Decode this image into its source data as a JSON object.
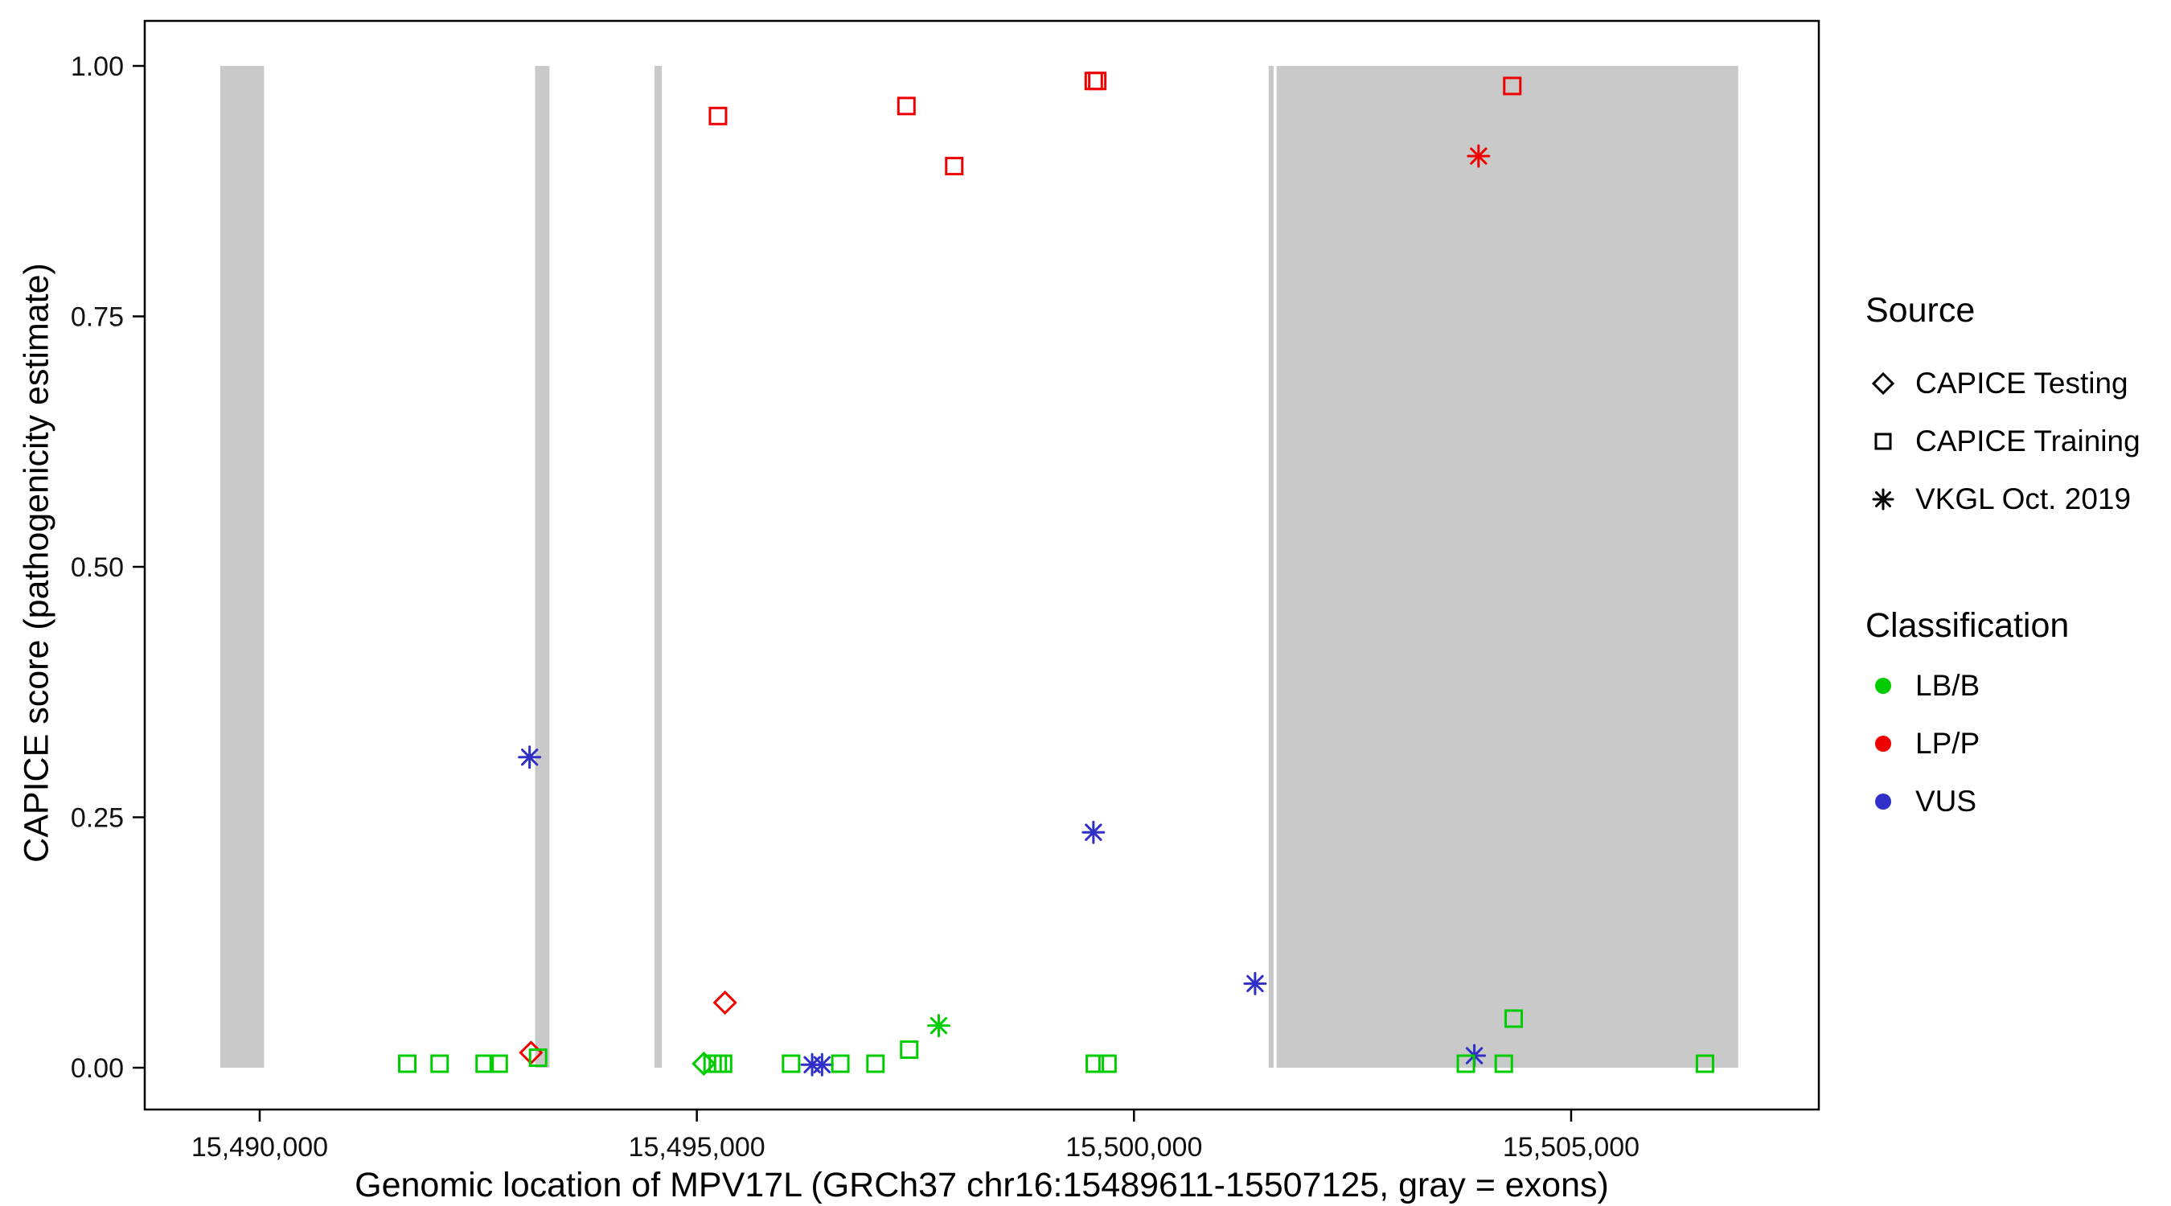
{
  "chart_data": {
    "type": "scatter",
    "title": "",
    "xlabel": "Genomic location of MPV17L (GRCh37 chr16:15489611-15507125, gray = exons)",
    "ylabel": "CAPICE score (pathogenicity estimate)",
    "x_domain": [
      15488685,
      15507833
    ],
    "y_domain": [
      -0.042,
      1.045
    ],
    "grid": "off",
    "legend_position": "right",
    "x_ticks": [
      {
        "value": 15490000,
        "label": "15,490,000"
      },
      {
        "value": 15495000,
        "label": "15,495,000"
      },
      {
        "value": 15500000,
        "label": "15,500,000"
      },
      {
        "value": 15505000,
        "label": "15,505,000"
      }
    ],
    "y_ticks": [
      {
        "value": 0.0,
        "label": "0.00"
      },
      {
        "value": 0.25,
        "label": "0.25"
      },
      {
        "value": 0.5,
        "label": "0.50"
      },
      {
        "value": 0.75,
        "label": "0.75"
      },
      {
        "value": 1.0,
        "label": "1.00"
      }
    ],
    "exons": [
      {
        "start": 15489549,
        "end": 15490050
      },
      {
        "start": 15493150,
        "end": 15493315
      },
      {
        "start": 15494515,
        "end": 15494600
      },
      {
        "start": 15501540,
        "end": 15501597
      },
      {
        "start": 15501630,
        "end": 15506911
      }
    ],
    "colors": {
      "LB/B": "#00CC00",
      "LP/P": "#EE0000",
      "VUS": "#3030C8",
      "exon": "#C9C9C9",
      "black": "#000000",
      "axis": "#000000"
    },
    "points": [
      {
        "x": 15495242,
        "y": 0.95,
        "source": "training",
        "class": "LP/P"
      },
      {
        "x": 15497397,
        "y": 0.96,
        "source": "training",
        "class": "LP/P"
      },
      {
        "x": 15497944,
        "y": 0.9,
        "source": "training",
        "class": "LP/P"
      },
      {
        "x": 15499540,
        "y": 0.985,
        "source": "training",
        "class": "LP/P"
      },
      {
        "x": 15499580,
        "y": 0.985,
        "source": "training",
        "class": "LP/P"
      },
      {
        "x": 15504327,
        "y": 0.98,
        "source": "training",
        "class": "LP/P"
      },
      {
        "x": 15503941,
        "y": 0.91,
        "source": "vkgl",
        "class": "LP/P"
      },
      {
        "x": 15495322,
        "y": 0.065,
        "source": "testing",
        "class": "LP/P"
      },
      {
        "x": 15493103,
        "y": 0.015,
        "source": "testing",
        "class": "LP/P"
      },
      {
        "x": 15493087,
        "y": 0.31,
        "source": "vkgl",
        "class": "VUS"
      },
      {
        "x": 15499536,
        "y": 0.235,
        "source": "vkgl",
        "class": "VUS"
      },
      {
        "x": 15501385,
        "y": 0.084,
        "source": "vkgl",
        "class": "VUS"
      },
      {
        "x": 15496319,
        "y": 0.003,
        "source": "vkgl",
        "class": "VUS"
      },
      {
        "x": 15496432,
        "y": 0.003,
        "source": "vkgl",
        "class": "VUS"
      },
      {
        "x": 15503893,
        "y": 0.012,
        "source": "vkgl",
        "class": "VUS"
      },
      {
        "x": 15491688,
        "y": 0.004,
        "source": "training",
        "class": "LB/B"
      },
      {
        "x": 15492058,
        "y": 0.004,
        "source": "training",
        "class": "LB/B"
      },
      {
        "x": 15492573,
        "y": 0.004,
        "source": "training",
        "class": "LB/B"
      },
      {
        "x": 15492734,
        "y": 0.004,
        "source": "training",
        "class": "LB/B"
      },
      {
        "x": 15493184,
        "y": 0.01,
        "source": "training",
        "class": "LB/B"
      },
      {
        "x": 15495080,
        "y": 0.004,
        "source": "testing",
        "class": "LB/B"
      },
      {
        "x": 15495180,
        "y": 0.004,
        "source": "training",
        "class": "LB/B"
      },
      {
        "x": 15495240,
        "y": 0.004,
        "source": "training",
        "class": "LB/B"
      },
      {
        "x": 15495300,
        "y": 0.004,
        "source": "training",
        "class": "LB/B"
      },
      {
        "x": 15496078,
        "y": 0.004,
        "source": "training",
        "class": "LB/B"
      },
      {
        "x": 15496641,
        "y": 0.004,
        "source": "training",
        "class": "LB/B"
      },
      {
        "x": 15497043,
        "y": 0.004,
        "source": "training",
        "class": "LB/B"
      },
      {
        "x": 15497429,
        "y": 0.018,
        "source": "training",
        "class": "LB/B"
      },
      {
        "x": 15497767,
        "y": 0.042,
        "source": "vkgl",
        "class": "LB/B"
      },
      {
        "x": 15499552,
        "y": 0.004,
        "source": "training",
        "class": "LB/B"
      },
      {
        "x": 15499697,
        "y": 0.004,
        "source": "training",
        "class": "LB/B"
      },
      {
        "x": 15503796,
        "y": 0.004,
        "source": "training",
        "class": "LB/B"
      },
      {
        "x": 15504230,
        "y": 0.004,
        "source": "training",
        "class": "LB/B"
      },
      {
        "x": 15504343,
        "y": 0.049,
        "source": "training",
        "class": "LB/B"
      },
      {
        "x": 15506531,
        "y": 0.004,
        "source": "training",
        "class": "LB/B"
      }
    ],
    "legend": {
      "source": {
        "title": "Source",
        "items": [
          {
            "label": "CAPICE Testing",
            "shape": "diamond"
          },
          {
            "label": "CAPICE Training",
            "shape": "square"
          },
          {
            "label": "VKGL Oct. 2019",
            "shape": "asterisk"
          }
        ]
      },
      "classification": {
        "title": "Classification",
        "items": [
          {
            "label": "LB/B",
            "color_key": "LB/B"
          },
          {
            "label": "LP/P",
            "color_key": "LP/P"
          },
          {
            "label": "VUS",
            "color_key": "VUS"
          }
        ]
      }
    }
  }
}
